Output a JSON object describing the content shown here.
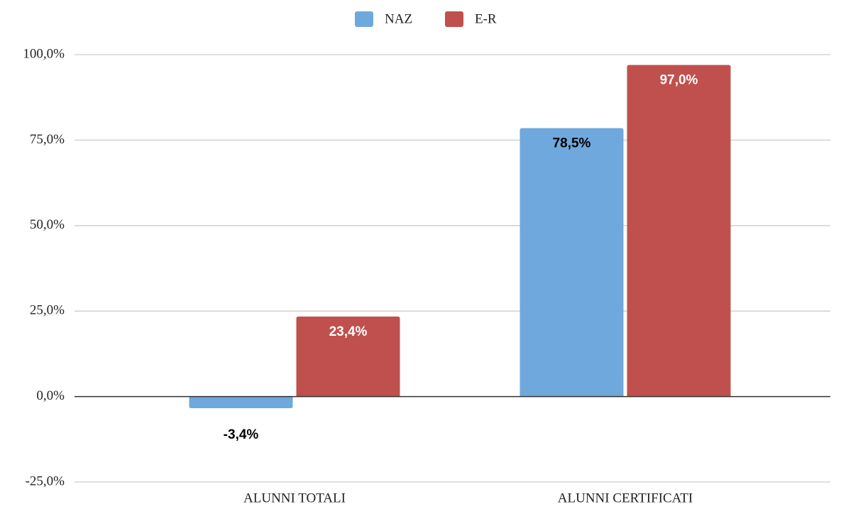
{
  "chart_data": {
    "type": "bar",
    "categories": [
      "ALUNNI TOTALI",
      "ALUNNI CERTIFICATI"
    ],
    "series": [
      {
        "name": "NAZ",
        "color": "#6fa8dc",
        "label_color": "#000000",
        "values": [
          -3.4,
          78.5
        ],
        "value_labels": [
          "-3,4%",
          "78,5%"
        ]
      },
      {
        "name": "E-R",
        "color": "#c0504d",
        "label_color": "#ffffff",
        "values": [
          23.4,
          97.0
        ],
        "value_labels": [
          "23,4%",
          "97,0%"
        ]
      }
    ],
    "ylim": [
      -25,
      100
    ],
    "yticks": [
      {
        "value": -25,
        "label": "-25,0%"
      },
      {
        "value": 0,
        "label": "0,0%"
      },
      {
        "value": 25,
        "label": "25,0%"
      },
      {
        "value": 50,
        "label": "50,0%"
      },
      {
        "value": 75,
        "label": "75,0%"
      },
      {
        "value": 100,
        "label": "100,0%"
      }
    ],
    "grid": true,
    "legend": "top"
  }
}
